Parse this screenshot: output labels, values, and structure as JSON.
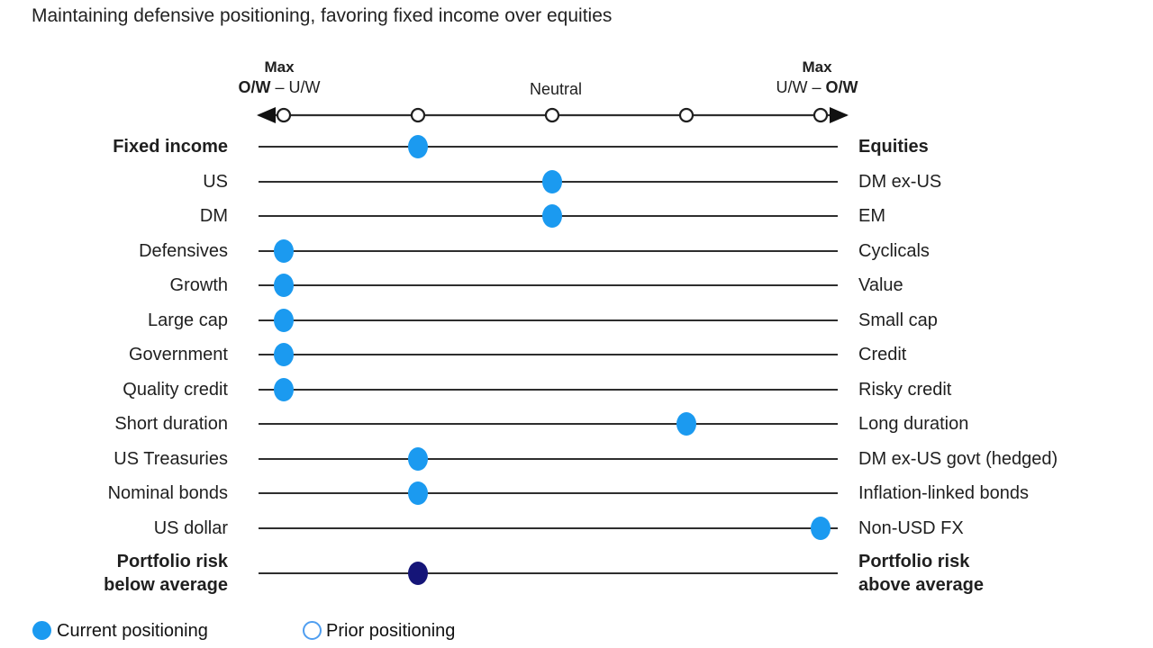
{
  "chart_data": {
    "type": "scatter",
    "title": "Maintaining defensive positioning, favoring fixed income over equities",
    "axis": {
      "left_top": "Max",
      "left_scale_bold": "O/W",
      "left_scale_rest": " – U/W",
      "center": "Neutral",
      "right_top": "Max",
      "right_scale_pre": "U/W – ",
      "right_scale_bold": "O/W"
    },
    "axis_scale": {
      "min": 0,
      "max": 4,
      "neutral": 2,
      "tick_count": 5,
      "left_end_meaning": "Max O/W of left asset",
      "right_end_meaning": "Max O/W of right asset",
      "grid": false
    },
    "rows": [
      {
        "left": [
          "Fixed income"
        ],
        "right": [
          "Equities"
        ],
        "value": 1,
        "bold": true,
        "marker": "current"
      },
      {
        "left": [
          "US"
        ],
        "right": [
          "DM ex-US"
        ],
        "value": 2,
        "bold": false,
        "marker": "current"
      },
      {
        "left": [
          "DM"
        ],
        "right": [
          "EM"
        ],
        "value": 2,
        "bold": false,
        "marker": "current"
      },
      {
        "left": [
          "Defensives"
        ],
        "right": [
          "Cyclicals"
        ],
        "value": 0,
        "bold": false,
        "marker": "current"
      },
      {
        "left": [
          "Growth"
        ],
        "right": [
          "Value"
        ],
        "value": 0,
        "bold": false,
        "marker": "current"
      },
      {
        "left": [
          "Large cap"
        ],
        "right": [
          "Small cap"
        ],
        "value": 0,
        "bold": false,
        "marker": "current"
      },
      {
        "left": [
          "Government"
        ],
        "right": [
          "Credit"
        ],
        "value": 0,
        "bold": false,
        "marker": "current"
      },
      {
        "left": [
          "Quality credit"
        ],
        "right": [
          "Risky credit"
        ],
        "value": 0,
        "bold": false,
        "marker": "current"
      },
      {
        "left": [
          "Short duration"
        ],
        "right": [
          "Long duration"
        ],
        "value": 3,
        "bold": false,
        "marker": "current"
      },
      {
        "left": [
          "US Treasuries"
        ],
        "right": [
          "DM ex-US govt (hedged)"
        ],
        "value": 1,
        "bold": false,
        "marker": "current"
      },
      {
        "left": [
          "Nominal bonds"
        ],
        "right": [
          "Inflation-linked bonds"
        ],
        "value": 1,
        "bold": false,
        "marker": "current"
      },
      {
        "left": [
          "US dollar"
        ],
        "right": [
          "Non-USD FX"
        ],
        "value": 4,
        "bold": false,
        "marker": "current"
      },
      {
        "left": [
          "Portfolio risk",
          "below average"
        ],
        "right": [
          "Portfolio risk",
          "above average"
        ],
        "value": 1,
        "bold": true,
        "marker": "risk"
      }
    ],
    "legend_items": [
      {
        "label": "Current positioning",
        "marker": "filled-blue-dot"
      },
      {
        "label": "Prior positioning",
        "marker": "open-blue-circle"
      }
    ],
    "colors": {
      "current_dot": "#1b9af0",
      "risk_dot": "#151578",
      "prior_circle_stroke": "#4f9ef0",
      "line": "#2e2e2e",
      "axis_tick_fill": "#ffffff",
      "text": "#1f1f1f"
    },
    "legend_position": "bottom-left"
  }
}
